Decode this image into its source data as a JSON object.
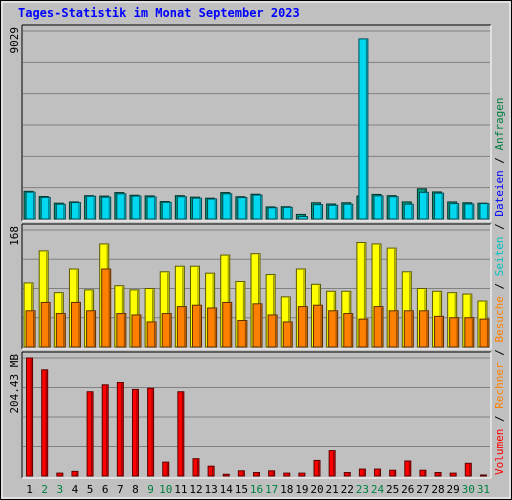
{
  "chart_data": {
    "type": "bar",
    "title": "Tages-Statistik im Monat September 2023",
    "categories": [
      "1",
      "2",
      "3",
      "4",
      "5",
      "6",
      "7",
      "8",
      "9",
      "10",
      "11",
      "12",
      "13",
      "14",
      "15",
      "16",
      "17",
      "18",
      "19",
      "20",
      "21",
      "22",
      "23",
      "24",
      "25",
      "26",
      "27",
      "28",
      "29",
      "30",
      "31"
    ],
    "weekend_days": [
      "2",
      "3",
      "9",
      "10",
      "16",
      "17",
      "23",
      "24",
      "30",
      "31"
    ],
    "panels": [
      {
        "id": "top",
        "max_label": "9029",
        "ymax": 9029,
        "series": [
          {
            "name": "Anfragen",
            "color": "#009a80",
            "values": [
              1330,
              1080,
              760,
              820,
              1120,
              1100,
              1270,
              1140,
              1110,
              840,
              1120,
              1050,
              1000,
              1270,
              1070,
              1190,
              580,
              590,
              220,
              780,
              720,
              780,
              1100,
              1180,
              1120,
              820,
              1450,
              1300,
              820,
              780,
              760
            ]
          },
          {
            "name": "Dateien",
            "color": "#00d8f0",
            "values": [
              1290,
              1040,
              710,
              790,
              1090,
              1050,
              1210,
              1100,
              1060,
              800,
              1070,
              1000,
              960,
              1210,
              1030,
              1150,
              540,
              560,
              120,
              690,
              660,
              710,
              8650,
              1110,
              1070,
              710,
              1280,
              1240,
              740,
              720,
              740
            ]
          }
        ]
      },
      {
        "id": "middle",
        "max_label": "168",
        "ymax": 168,
        "series": [
          {
            "name": "Seiten",
            "color": "#ffff00",
            "values": [
              92,
              138,
              78,
              112,
              82,
              148,
              88,
              82,
              84,
              108,
              116,
              116,
              106,
              132,
              94,
              134,
              104,
              72,
              112,
              90,
              80,
              80,
              150,
              148,
              142,
              108,
              84,
              80,
              78,
              76,
              66
            ]
          },
          {
            "name": "Besuche",
            "color": "#ff8000",
            "values": [
              52,
              64,
              48,
              64,
              52,
              112,
              48,
              46,
              36,
              48,
              58,
              60,
              56,
              64,
              38,
              62,
              46,
              36,
              58,
              60,
              52,
              48,
              40,
              58,
              52,
              52,
              52,
              44,
              42,
              42,
              40
            ]
          }
        ]
      },
      {
        "id": "bottom",
        "max_label": "204.43 MB",
        "ymax": 204.43,
        "series": [
          {
            "name": "Volumen",
            "color": "#ff0000",
            "values": [
              204.43,
              184,
              5,
              8,
              146,
              158,
              162,
              150,
              152,
              24,
              146,
              30,
              17,
              3,
              9,
              6,
              9,
              5,
              5,
              27,
              44,
              6,
              12,
              12,
              10,
              26,
              10,
              6,
              5,
              22,
              0
            ]
          }
        ]
      }
    ],
    "legend_right": [
      "Volumen",
      "Rechner",
      "Besuche",
      "Seiten",
      "Dateien",
      "Anfragen"
    ],
    "legend_separator": " / ",
    "legend_colors": [
      "#ff0000",
      "#ff8000",
      "#ff8000",
      "#00c0c0",
      "#0000ff",
      "#008040"
    ]
  }
}
